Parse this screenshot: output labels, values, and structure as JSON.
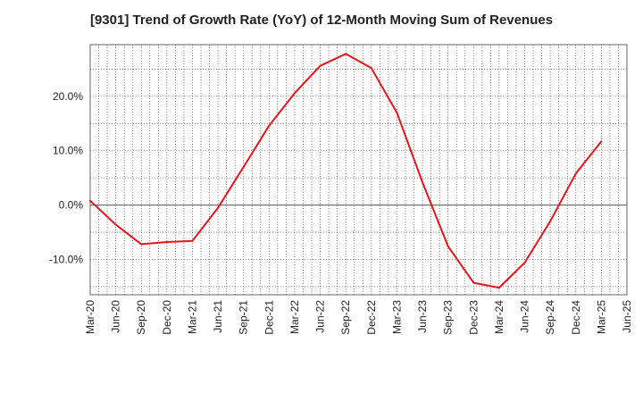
{
  "chart_data": {
    "type": "line",
    "title": "[9301]  Trend of Growth Rate (YoY) of 12-Month Moving Sum of Revenues",
    "xlabel": "",
    "ylabel": "",
    "x_tick_labels": [
      "Mar-20",
      "Jun-20",
      "Sep-20",
      "Dec-20",
      "Mar-21",
      "Jun-21",
      "Sep-21",
      "Dec-21",
      "Mar-22",
      "Jun-22",
      "Sep-22",
      "Dec-22",
      "Mar-23",
      "Jun-23",
      "Sep-23",
      "Dec-23",
      "Mar-24",
      "Jun-24",
      "Sep-24",
      "Dec-24",
      "Mar-25",
      "Jun-25"
    ],
    "y_ticks": [
      20,
      10,
      0,
      -10
    ],
    "y_tick_labels": [
      "20.0%",
      "10.0%",
      "0.0%",
      "-10.0%"
    ],
    "ylim": [
      -16.5,
      29.5
    ],
    "grid": true,
    "line_color": "#e8141b",
    "series": [
      {
        "x": [
          "Mar-20",
          "Jun-20",
          "Sep-20",
          "Dec-20",
          "Mar-21",
          "Jun-21",
          "Sep-21",
          "Dec-21",
          "Mar-22",
          "Jun-22",
          "Sep-22",
          "Dec-22",
          "Mar-23",
          "Jun-23",
          "Sep-23",
          "Dec-23",
          "Mar-24",
          "Jun-24",
          "Sep-24",
          "Dec-24",
          "Mar-25"
        ],
        "values": [
          0.8,
          -3.6,
          -7.2,
          -6.8,
          -6.6,
          -0.5,
          7.0,
          14.6,
          20.6,
          25.6,
          27.8,
          25.2,
          17.0,
          4.2,
          -7.6,
          -14.3,
          -15.2,
          -10.6,
          -3.0,
          5.8,
          11.7
        ]
      }
    ]
  }
}
